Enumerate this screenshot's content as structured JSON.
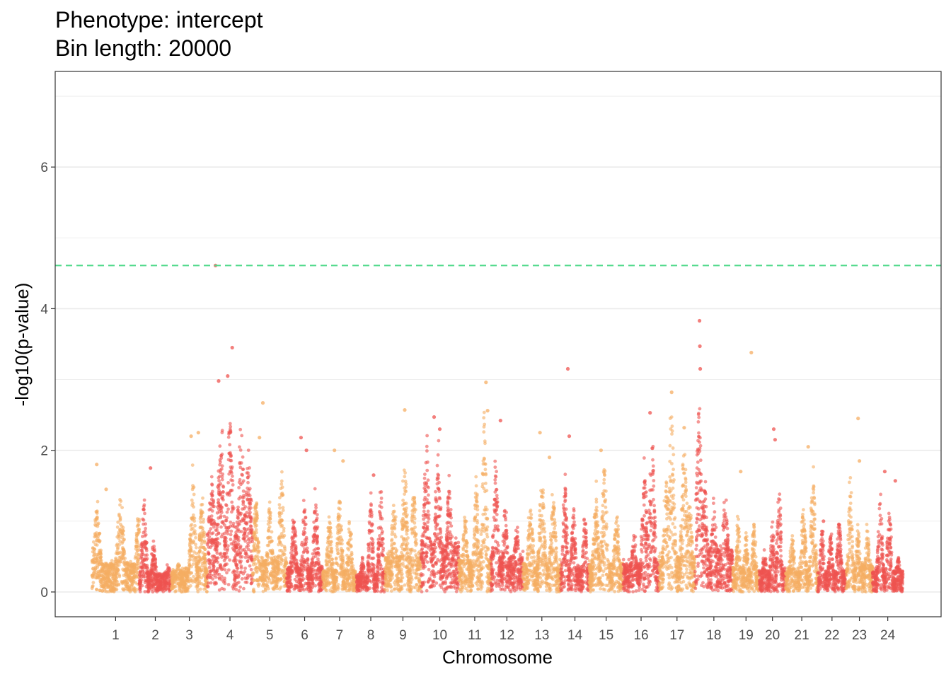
{
  "chart_data": {
    "type": "scatter",
    "title": "Phenotype: intercept",
    "subtitle": "Bin length: 20000",
    "xlabel": "Chromosome",
    "ylabel": "-log10(p-value)",
    "ylim": [
      -0.35,
      7.35
    ],
    "y_ticks": [
      0,
      2,
      4,
      6
    ],
    "grid": true,
    "threshold": {
      "value": 4.61,
      "color": "#4fd98a"
    },
    "colors": {
      "odd": "#f5ae63",
      "even": "#ef5450"
    },
    "chromosomes": [
      {
        "label": "1",
        "start": 0.0,
        "end": 1.25,
        "peaks": [
          [
            0.1,
            1.2
          ],
          [
            0.6,
            1.3
          ],
          [
            1.0,
            1.1
          ]
        ],
        "base": 0.4,
        "top": [
          [
            0.1,
            1.8
          ],
          [
            0.3,
            1.45
          ]
        ]
      },
      {
        "label": "2",
        "start": 1.25,
        "end": 2.1,
        "peaks": [
          [
            0.15,
            1.25
          ],
          [
            0.45,
            0.7
          ],
          [
            0.9,
            0.4
          ]
        ],
        "base": 0.25,
        "top": [
          [
            0.35,
            1.75
          ]
        ]
      },
      {
        "label": "3",
        "start": 2.1,
        "end": 3.05,
        "peaks": [
          [
            0.2,
            0.4
          ],
          [
            0.6,
            1.6
          ],
          [
            0.85,
            1.3
          ]
        ],
        "base": 0.3,
        "top": [
          [
            0.55,
            2.2
          ],
          [
            0.75,
            2.25
          ]
        ]
      },
      {
        "label": "4",
        "start": 3.05,
        "end": 4.25,
        "peaks": [
          [
            0.1,
            1.6
          ],
          [
            0.3,
            2.2
          ],
          [
            0.5,
            2.4
          ],
          [
            0.75,
            2.1
          ],
          [
            0.9,
            1.8
          ]
        ],
        "base": 0.8,
        "top": [
          [
            0.18,
            4.61
          ],
          [
            0.55,
            3.45
          ],
          [
            0.45,
            3.05
          ],
          [
            0.25,
            2.98
          ]
        ]
      },
      {
        "label": "5",
        "start": 4.25,
        "end": 5.15,
        "peaks": [
          [
            0.1,
            1.3
          ],
          [
            0.5,
            1.2
          ],
          [
            0.85,
            1.6
          ]
        ],
        "base": 0.45,
        "top": [
          [
            0.3,
            2.67
          ],
          [
            0.2,
            2.18
          ]
        ]
      },
      {
        "label": "6",
        "start": 5.15,
        "end": 6.1,
        "peaks": [
          [
            0.2,
            1.0
          ],
          [
            0.5,
            1.2
          ],
          [
            0.8,
            1.3
          ]
        ],
        "base": 0.35,
        "top": [
          [
            0.4,
            2.18
          ],
          [
            0.55,
            2.0
          ]
        ]
      },
      {
        "label": "7",
        "start": 6.1,
        "end": 7.0,
        "peaks": [
          [
            0.2,
            1.1
          ],
          [
            0.5,
            1.3
          ],
          [
            0.8,
            1.0
          ]
        ],
        "base": 0.3,
        "top": [
          [
            0.35,
            2.0
          ],
          [
            0.6,
            1.85
          ]
        ]
      },
      {
        "label": "8",
        "start": 7.0,
        "end": 7.75,
        "peaks": [
          [
            0.2,
            0.5
          ],
          [
            0.5,
            1.3
          ],
          [
            0.85,
            1.5
          ]
        ],
        "base": 0.25,
        "top": [
          [
            0.6,
            1.65
          ]
        ]
      },
      {
        "label": "9",
        "start": 7.75,
        "end": 8.7,
        "peaks": [
          [
            0.25,
            1.3
          ],
          [
            0.55,
            1.8
          ],
          [
            0.8,
            1.4
          ]
        ],
        "base": 0.5,
        "top": [
          [
            0.55,
            2.57
          ]
        ]
      },
      {
        "label": "10",
        "start": 8.7,
        "end": 9.7,
        "peaks": [
          [
            0.15,
            2.1
          ],
          [
            0.45,
            2.0
          ],
          [
            0.75,
            1.5
          ]
        ],
        "base": 0.7,
        "top": [
          [
            0.35,
            2.47
          ],
          [
            0.5,
            2.3
          ]
        ]
      },
      {
        "label": "11",
        "start": 9.7,
        "end": 10.55,
        "peaks": [
          [
            0.2,
            1.1
          ],
          [
            0.55,
            1.5
          ],
          [
            0.8,
            2.4
          ]
        ],
        "base": 0.45,
        "top": [
          [
            0.85,
            2.96
          ],
          [
            0.9,
            2.56
          ]
        ]
      },
      {
        "label": "12",
        "start": 10.55,
        "end": 11.4,
        "peaks": [
          [
            0.15,
            1.7
          ],
          [
            0.45,
            1.2
          ],
          [
            0.8,
            0.9
          ]
        ],
        "base": 0.5,
        "top": [
          [
            0.3,
            2.42
          ]
        ]
      },
      {
        "label": "13",
        "start": 11.4,
        "end": 12.4,
        "peaks": [
          [
            0.2,
            1.2
          ],
          [
            0.5,
            1.6
          ],
          [
            0.8,
            1.3
          ]
        ],
        "base": 0.4,
        "top": [
          [
            0.45,
            2.25
          ],
          [
            0.7,
            1.9
          ]
        ]
      },
      {
        "label": "14",
        "start": 12.4,
        "end": 13.15,
        "peaks": [
          [
            0.15,
            1.5
          ],
          [
            0.45,
            1.2
          ],
          [
            0.85,
            1.1
          ]
        ],
        "base": 0.35,
        "top": [
          [
            0.25,
            3.15
          ],
          [
            0.3,
            2.2
          ]
        ]
      },
      {
        "label": "15",
        "start": 13.15,
        "end": 14.05,
        "peaks": [
          [
            0.2,
            1.4
          ],
          [
            0.45,
            1.8
          ],
          [
            0.8,
            1.1
          ]
        ],
        "base": 0.4,
        "top": [
          [
            0.35,
            2.0
          ]
        ]
      },
      {
        "label": "16",
        "start": 14.05,
        "end": 15.0,
        "peaks": [
          [
            0.3,
            0.8
          ],
          [
            0.6,
            1.8
          ],
          [
            0.8,
            2.3
          ]
        ],
        "base": 0.4,
        "top": [
          [
            0.75,
            2.53
          ]
        ]
      },
      {
        "label": "17",
        "start": 15.0,
        "end": 15.95,
        "peaks": [
          [
            0.2,
            1.6
          ],
          [
            0.35,
            2.6
          ],
          [
            0.7,
            2.1
          ],
          [
            0.85,
            1.3
          ]
        ],
        "base": 0.5,
        "top": [
          [
            0.35,
            2.82
          ],
          [
            0.7,
            2.32
          ]
        ]
      },
      {
        "label": "18",
        "start": 15.95,
        "end": 16.95,
        "peaks": [
          [
            0.1,
            2.6
          ],
          [
            0.25,
            1.5
          ],
          [
            0.5,
            1.2
          ],
          [
            0.8,
            1.4
          ]
        ],
        "base": 0.6,
        "top": [
          [
            0.12,
            3.83
          ],
          [
            0.13,
            3.47
          ],
          [
            0.14,
            3.15
          ]
        ]
      },
      {
        "label": "19",
        "start": 16.95,
        "end": 17.65,
        "peaks": [
          [
            0.2,
            1.0
          ],
          [
            0.5,
            0.9
          ],
          [
            0.8,
            1.0
          ]
        ],
        "base": 0.35,
        "top": [
          [
            0.7,
            3.38
          ],
          [
            0.3,
            1.7
          ]
        ]
      },
      {
        "label": "20",
        "start": 17.65,
        "end": 18.35,
        "peaks": [
          [
            0.2,
            0.6
          ],
          [
            0.5,
            1.0
          ],
          [
            0.75,
            1.5
          ]
        ],
        "base": 0.3,
        "top": [
          [
            0.55,
            2.3
          ],
          [
            0.6,
            2.15
          ]
        ]
      },
      {
        "label": "21",
        "start": 18.35,
        "end": 19.2,
        "peaks": [
          [
            0.2,
            0.8
          ],
          [
            0.55,
            1.2
          ],
          [
            0.85,
            1.6
          ]
        ],
        "base": 0.3,
        "top": [
          [
            0.7,
            2.05
          ]
        ]
      },
      {
        "label": "22",
        "start": 19.2,
        "end": 19.95,
        "peaks": [
          [
            0.15,
            0.9
          ],
          [
            0.45,
            0.8
          ],
          [
            0.75,
            1.0
          ]
        ],
        "base": 0.3,
        "top": [
          [
            0.2,
            1.0
          ]
        ]
      },
      {
        "label": "23",
        "start": 19.95,
        "end": 20.65,
        "peaks": [
          [
            0.15,
            1.5
          ],
          [
            0.45,
            0.9
          ],
          [
            0.8,
            0.9
          ]
        ],
        "base": 0.4,
        "top": [
          [
            0.45,
            2.45
          ],
          [
            0.5,
            1.85
          ]
        ]
      },
      {
        "label": "24",
        "start": 20.65,
        "end": 21.45,
        "peaks": [
          [
            0.25,
            1.3
          ],
          [
            0.55,
            1.1
          ],
          [
            0.85,
            0.5
          ]
        ],
        "base": 0.3,
        "top": [
          [
            0.4,
            1.7
          ],
          [
            0.75,
            1.57
          ]
        ]
      }
    ]
  }
}
